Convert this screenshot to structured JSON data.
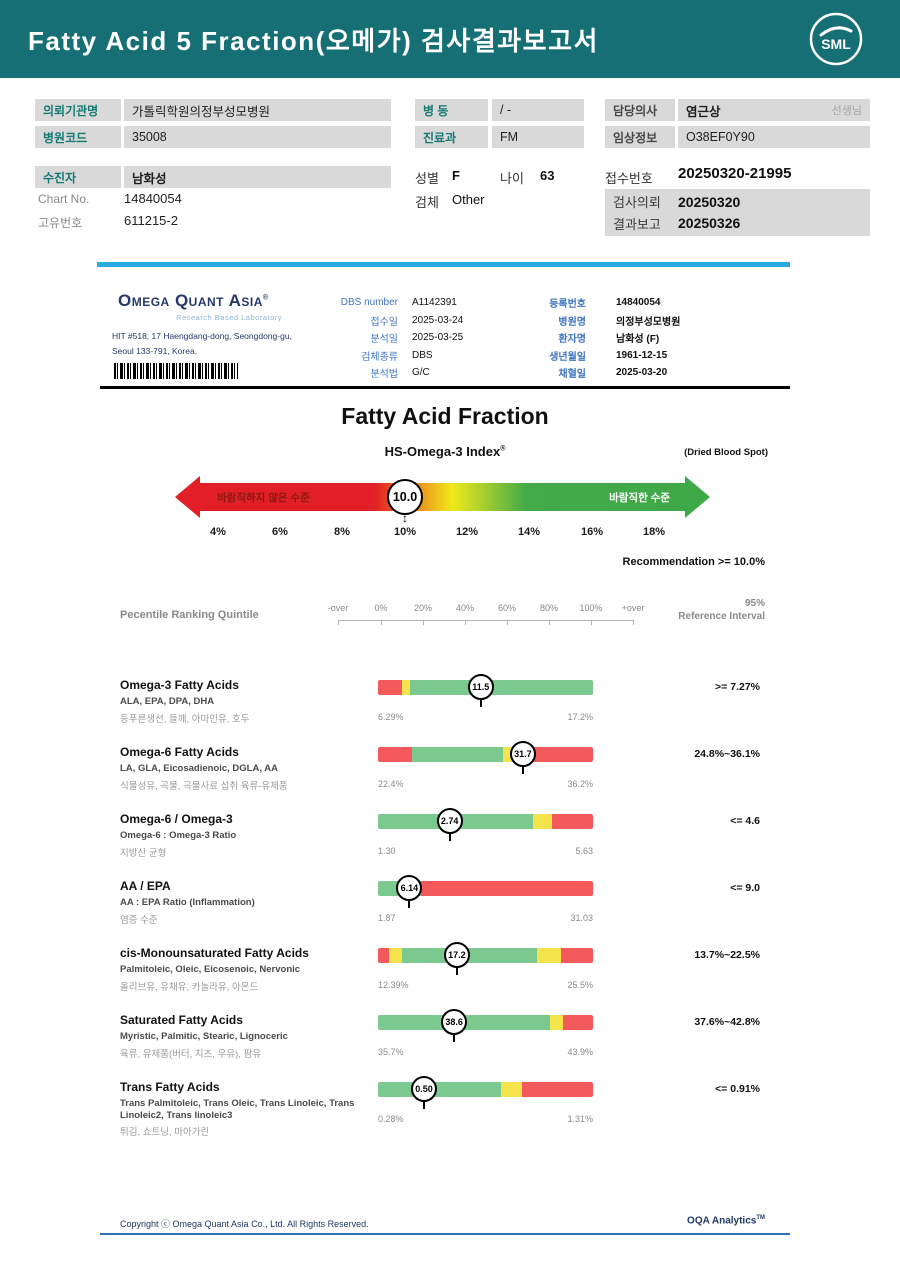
{
  "colors": {
    "banner_teal": "#156f75",
    "divider_blue": "#29abe2",
    "bar_red": "#f4595c",
    "bar_yellow": "#f5e34b",
    "bar_green": "#7cc98f",
    "gauge_red": "#e21f26",
    "gauge_green": "#3fa847",
    "label_teal": "#157a72",
    "table_blue": "#4076c4",
    "navy": "#1f3864"
  },
  "banner": {
    "title": "Fatty Acid 5 Fraction(오메가) 검사결과보고서",
    "logo_text": "SML"
  },
  "info": {
    "org_label": "의뢰기관명",
    "org_value": "가톨릭학원의정부성모병원",
    "code_label": "병원코드",
    "code_value": "35008",
    "patient_label": "수진자",
    "patient_value": "남화성",
    "chart_label": "Chart No.",
    "chart_value": "14840054",
    "uid_label": "고유번호",
    "uid_value": "611215-2",
    "ward_label": "병 동",
    "ward_value": "/ -",
    "dept_label": "진료과",
    "dept_value": "FM",
    "sex_label": "성별",
    "sex_value": "F",
    "age_label": "나이",
    "age_value": "63",
    "specimen_label": "검체",
    "specimen_value": "Other",
    "doctor_label": "담당의사",
    "doctor_value": "염근상",
    "doctor_suffix": "선생님",
    "clinical_label": "임상정보",
    "clinical_value": "O38EF0Y90",
    "receipt_label": "접수번호",
    "receipt_value": "20250320-21995",
    "request_label": "검사의뢰",
    "request_value": "20250320",
    "result_label": "결과보고",
    "result_value": "20250326"
  },
  "lab_header": {
    "logo_main": "Omega Quant Asia",
    "logo_reg": "®",
    "logo_sub": "Research Based Laboratory",
    "address1": "HIT #518, 17 Haengdang-dong, Seongdong-gu,",
    "address2": "Seoul 133-791, Korea.",
    "mid_table": [
      {
        "label": "DBS number",
        "value": "A1142391"
      },
      {
        "label": "접수일",
        "value": "2025-03-24"
      },
      {
        "label": "분석일",
        "value": "2025-03-25"
      },
      {
        "label": "검체종류",
        "value": "DBS"
      },
      {
        "label": "분석법",
        "value": "G/C"
      }
    ],
    "right_table": [
      {
        "label": "등록번호",
        "value": "14840054"
      },
      {
        "label": "병원명",
        "value": "의정부성모병원"
      },
      {
        "label": "환자명",
        "value": "남화성 (F)"
      },
      {
        "label": "생년월일",
        "value": "1961-12-15"
      },
      {
        "label": "채혈일",
        "value": "2025-03-20"
      }
    ]
  },
  "report": {
    "title": "Fatty Acid Fraction",
    "subtitle": "HS-Omega-3 Index",
    "subtitle_reg": "®",
    "note": "(Dried Blood Spot)",
    "recommendation": "Recommendation  >= 10.0%",
    "gauge": {
      "bad_label": "바람직하지 않은 수준",
      "good_label": "바람직한 수준",
      "value": "10.0",
      "updown_icon": "↕",
      "scale": [
        "4%",
        "6%",
        "8%",
        "10%",
        "12%",
        "14%",
        "16%",
        "18%"
      ]
    },
    "quintile": {
      "heading": "Pecentile Ranking Quintile",
      "axis": [
        "-over",
        "0%",
        "20%",
        "40%",
        "60%",
        "80%",
        "100%",
        "+over"
      ],
      "ref_line1": "95%",
      "ref_line2": "Reference Interval"
    }
  },
  "chart_data": {
    "type": "bar",
    "title": "Fatty Acid Fraction — Percentile Ranking Quintile",
    "hs_omega3_index": 10.0,
    "index_scale_pct": [
      4,
      6,
      8,
      10,
      12,
      14,
      16,
      18
    ],
    "recommendation_threshold": ">= 10.0%",
    "rows": [
      {
        "title": "Omega-3 Fatty Acids",
        "components": "ALA, EPA, DPA, DHA",
        "korean": "등푸른생선, 들깨, 아마인유, 호두",
        "value": 11.5,
        "display": "11.5",
        "min": "6.29%",
        "max": "17.2%",
        "reference": ">= 7.27%",
        "marker_pct": 47.8,
        "segments": [
          {
            "color": "red",
            "pct": 11
          },
          {
            "color": "yellow",
            "pct": 4
          },
          {
            "color": "green",
            "pct": 85
          }
        ]
      },
      {
        "title": "Omega-6 Fatty Acids",
        "components": "LA, GLA, Eicosadienoic, DGLA, AA",
        "korean": "식물성유, 곡물, 곡물사료 섭취 육류-유제품",
        "value": 31.7,
        "display": "31.7",
        "min": "22.4%",
        "max": "36.2%",
        "reference": "24.8%~36.1%",
        "marker_pct": 67.4,
        "segments": [
          {
            "color": "red",
            "pct": 16
          },
          {
            "color": "green",
            "pct": 42
          },
          {
            "color": "yellow",
            "pct": 14
          },
          {
            "color": "red",
            "pct": 28
          }
        ]
      },
      {
        "title": "Omega-6 / Omega-3",
        "components": "Omega-6 : Omega-3 Ratio",
        "korean": "지방산 균형",
        "value": 2.74,
        "display": "2.74",
        "min": "1.30",
        "max": "5.63",
        "reference": "<= 4.6",
        "marker_pct": 33.3,
        "segments": [
          {
            "color": "green",
            "pct": 72
          },
          {
            "color": "yellow",
            "pct": 9
          },
          {
            "color": "red",
            "pct": 19
          }
        ]
      },
      {
        "title": "AA / EPA",
        "components": "AA : EPA Ratio (Inflammation)",
        "korean": "염증 수준",
        "value": 6.14,
        "display": "6.14",
        "min": "1.87",
        "max": "31.03",
        "reference": "<= 9.0",
        "marker_pct": 14.6,
        "segments": [
          {
            "color": "green",
            "pct": 20
          },
          {
            "color": "red",
            "pct": 80
          }
        ]
      },
      {
        "title": "cis-Monounsaturated Fatty Acids",
        "components": "Palmitoleic, Oleic, Eicosenoic, Nervonic",
        "korean": "올리브유, 유채유, 카놀라유, 아몬드",
        "value": 17.2,
        "display": "17.2",
        "min": "12.39%",
        "max": "25.5%",
        "reference": "13.7%~22.5%",
        "marker_pct": 36.7,
        "segments": [
          {
            "color": "red",
            "pct": 5
          },
          {
            "color": "yellow",
            "pct": 6
          },
          {
            "color": "green",
            "pct": 63
          },
          {
            "color": "yellow",
            "pct": 11
          },
          {
            "color": "red",
            "pct": 15
          }
        ]
      },
      {
        "title": "Saturated Fatty Acids",
        "components": "Myristic, Palmitic, Stearic, Lignoceric",
        "korean": "육류, 유제품(버터, 치즈, 우유), 팜유",
        "value": 38.6,
        "display": "38.6",
        "min": "35.7%",
        "max": "43.9%",
        "reference": "37.6%~42.8%",
        "marker_pct": 35.4,
        "segments": [
          {
            "color": "green",
            "pct": 80
          },
          {
            "color": "yellow",
            "pct": 6
          },
          {
            "color": "red",
            "pct": 14
          }
        ]
      },
      {
        "title": "Trans Fatty Acids",
        "components": "Trans Palmitoleic, Trans Oleic, Trans Linoleic, Trans Linoleic2, Trans linoleic3",
        "korean": "튀김, 쇼트닝, 마아가린",
        "value": 0.5,
        "display": "0.50",
        "min": "0.28%",
        "max": "1.31%",
        "reference": "<= 0.91%",
        "marker_pct": 21.4,
        "segments": [
          {
            "color": "green",
            "pct": 57
          },
          {
            "color": "yellow",
            "pct": 10
          },
          {
            "color": "red",
            "pct": 33
          }
        ]
      }
    ]
  },
  "footer": {
    "copyright": "Copyright ⓒ Omega Quant Asia Co., Ltd.  All Rights Reserved.",
    "brand": "OQA Analytics",
    "brand_tm": "TM"
  }
}
